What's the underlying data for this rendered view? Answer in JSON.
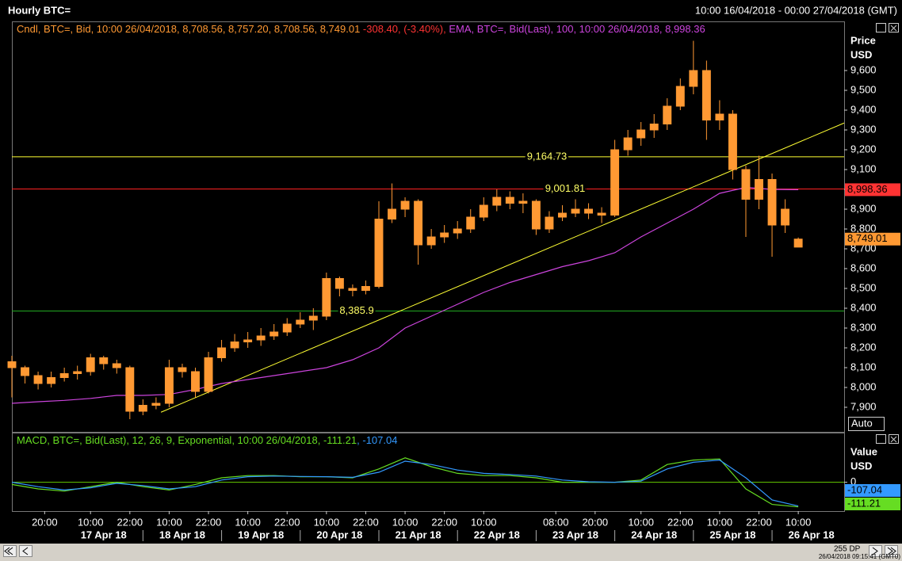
{
  "header": {
    "title": "Hourly BTC=",
    "range": "10:00 16/04/2018 - 00:00 27/04/2018 (GMT)"
  },
  "footer": {
    "points": "255 DP",
    "timestamp": "26/04/2018 09:15:41 (GMT0)"
  },
  "chart_data": [
    {
      "type": "candlestick",
      "legend": [
        {
          "text": "Cndl, BTC=, Bid, 10:00 26/04/2018, 8,708.56, 8,757.20, 8,708.56, 8,749.01",
          "color": "#ff9933"
        },
        {
          "text": " -308.40, (-3.40%), ",
          "color": "#ff3333"
        },
        {
          "text": "EMA, BTC=, Bid(Last),  100, 10:00 26/04/2018, 8,998.36",
          "color": "#cc44dd"
        }
      ],
      "y_title": "Price",
      "y_unit": "USD",
      "button": "Auto",
      "color": "#ff9933",
      "x": [
        0,
        4,
        8,
        12,
        16,
        20,
        24,
        28,
        32,
        36,
        40,
        44,
        48,
        52,
        56,
        60,
        64,
        68,
        72,
        76,
        80,
        84,
        88,
        92,
        96,
        100,
        104,
        108,
        112,
        116,
        120,
        124,
        128,
        132,
        136,
        140,
        144,
        148,
        152,
        156,
        160,
        164,
        168,
        172,
        176,
        180,
        184,
        188,
        192,
        196,
        200,
        204,
        208,
        212,
        216,
        220,
        224,
        228,
        232,
        236,
        240
      ],
      "open": [
        8130,
        8100,
        8060,
        8020,
        8050,
        8070,
        8080,
        8150,
        8120,
        8100,
        7880,
        7910,
        7920,
        8100,
        8080,
        7980,
        8150,
        8200,
        8230,
        8240,
        8260,
        8280,
        8320,
        8340,
        8360,
        8550,
        8500,
        8490,
        8510,
        8850,
        8900,
        8940,
        8720,
        8760,
        8780,
        8800,
        8860,
        8920,
        8960,
        8930,
        8940,
        8800,
        8860,
        8880,
        8900,
        8880,
        8870,
        9200,
        9260,
        9300,
        9330,
        9420,
        9520,
        9600,
        9350,
        9380,
        9100,
        8950,
        9050,
        8820,
        8708.56
      ],
      "high": [
        8160,
        8110,
        8080,
        8080,
        8100,
        8110,
        8170,
        8160,
        8140,
        8110,
        7940,
        7950,
        8140,
        8120,
        8100,
        8180,
        8240,
        8270,
        8280,
        8300,
        8320,
        8350,
        8380,
        8400,
        8580,
        8560,
        8520,
        8540,
        8940,
        9030,
        8960,
        8950,
        8800,
        8820,
        8840,
        8900,
        8960,
        9000,
        8990,
        8980,
        8950,
        8890,
        8920,
        8950,
        8930,
        8910,
        9250,
        9300,
        9340,
        9380,
        9460,
        9560,
        9750,
        9650,
        9450,
        9400,
        9120,
        9170,
        9080,
        8950,
        8757.2
      ],
      "low": [
        7950,
        8020,
        7990,
        8000,
        8030,
        8040,
        8060,
        8090,
        8070,
        7840,
        7860,
        7890,
        7900,
        8050,
        7950,
        7970,
        8130,
        8180,
        8200,
        8210,
        8240,
        8260,
        8300,
        8290,
        8340,
        8460,
        8460,
        8470,
        8500,
        8830,
        8860,
        8620,
        8700,
        8730,
        8750,
        8780,
        8840,
        8890,
        8900,
        8880,
        8770,
        8780,
        8840,
        8860,
        8850,
        8830,
        8860,
        9170,
        9220,
        9260,
        9300,
        9400,
        9480,
        9250,
        9300,
        9050,
        8760,
        8900,
        8660,
        8780,
        8708.56
      ],
      "close": [
        8100,
        8060,
        8020,
        8050,
        8070,
        8080,
        8150,
        8120,
        8100,
        7880,
        7910,
        7920,
        8100,
        8080,
        7980,
        8150,
        8200,
        8230,
        8240,
        8260,
        8280,
        8320,
        8340,
        8360,
        8550,
        8500,
        8490,
        8510,
        8850,
        8900,
        8940,
        8720,
        8760,
        8780,
        8800,
        8860,
        8920,
        8960,
        8930,
        8940,
        8800,
        8860,
        8880,
        8900,
        8880,
        8870,
        9200,
        9260,
        9300,
        9330,
        9420,
        9520,
        9600,
        9350,
        9380,
        9100,
        8950,
        9050,
        8820,
        8900,
        8749.01
      ],
      "series": [
        {
          "color": "#cc44dd",
          "x": [
            0,
            8,
            16,
            24,
            32,
            40,
            48,
            56,
            64,
            72,
            80,
            88,
            96,
            104,
            112,
            120,
            128,
            136,
            144,
            152,
            160,
            168,
            176,
            184,
            192,
            200,
            208,
            216,
            224,
            232,
            240
          ],
          "values": [
            7920,
            7928,
            7935,
            7945,
            7960,
            7960,
            7965,
            7990,
            8020,
            8040,
            8060,
            8080,
            8100,
            8140,
            8200,
            8300,
            8360,
            8420,
            8480,
            8530,
            8570,
            8610,
            8640,
            8680,
            8760,
            8830,
            8900,
            8980,
            9010,
            9000,
            8998.36
          ]
        }
      ],
      "hlines": [
        {
          "value": 9164.73,
          "label": "9,164.73",
          "color": "#ffff33"
        },
        {
          "value": 9001.81,
          "label": "9,001.81",
          "color": "#ff2222"
        },
        {
          "value": 8385.9,
          "label": "8,385.9",
          "color": "#22aa22"
        }
      ],
      "trendline": {
        "x": [
          45.5,
          254
        ],
        "y": [
          7875,
          9335
        ],
        "color": "#ffff33"
      },
      "price_labels": [
        {
          "value": 8998.36,
          "label": "8,998.36",
          "color": "#ff3333"
        },
        {
          "value": 8749.01,
          "label": "8,749.01",
          "color": "#ff9933"
        }
      ],
      "xlim": [
        0,
        254
      ],
      "ylim": [
        7776,
        9844
      ],
      "yticks": [
        {
          "value": 7900,
          "label": "7,900"
        },
        {
          "value": 8000,
          "label": "8,000"
        },
        {
          "value": 8100,
          "label": "8,100"
        },
        {
          "value": 8200,
          "label": "8,200"
        },
        {
          "value": 8300,
          "label": "8,300"
        },
        {
          "value": 8400,
          "label": "8,400"
        },
        {
          "value": 8500,
          "label": "8,500"
        },
        {
          "value": 8600,
          "label": "8,600"
        },
        {
          "value": 8700,
          "label": "8,700"
        },
        {
          "value": 8800,
          "label": "8,800"
        },
        {
          "value": 8900,
          "label": "8,900"
        },
        {
          "value": 9000,
          "label": "9,000"
        },
        {
          "value": 9100,
          "label": "9,100"
        },
        {
          "value": 9200,
          "label": "9,200"
        },
        {
          "value": 9300,
          "label": "9,300"
        },
        {
          "value": 9400,
          "label": "9,400"
        },
        {
          "value": 9500,
          "label": "9,500"
        },
        {
          "value": 9600,
          "label": "9,600"
        }
      ],
      "grid": false
    },
    {
      "type": "line",
      "legend": [
        {
          "text": "MACD, BTC=, Bid(Last),  12, 26, 9, Exponential, 10:00 26/04/2018, -111.21",
          "color": "#66dd22"
        },
        {
          "text": ", -107.04",
          "color": "#3399ff"
        }
      ],
      "y_title": "Value",
      "y_unit": "USD",
      "x": [
        0,
        8,
        16,
        24,
        32,
        40,
        48,
        56,
        64,
        72,
        80,
        88,
        96,
        104,
        112,
        120,
        128,
        136,
        144,
        152,
        160,
        168,
        176,
        184,
        192,
        200,
        208,
        216,
        224,
        232,
        240
      ],
      "series": [
        {
          "color": "#66dd22",
          "values": [
            -10,
            -30,
            -40,
            -20,
            0,
            -20,
            -35,
            -10,
            20,
            30,
            30,
            25,
            25,
            20,
            60,
            110,
            70,
            40,
            30,
            30,
            20,
            0,
            0,
            0,
            10,
            80,
            100,
            105,
            -30,
            -100,
            -111.21
          ]
        },
        {
          "color": "#3399ff",
          "values": [
            0,
            -20,
            -35,
            -25,
            -5,
            -15,
            -30,
            -20,
            10,
            25,
            28,
            26,
            25,
            22,
            45,
            95,
            80,
            55,
            40,
            35,
            28,
            10,
            2,
            0,
            5,
            60,
            90,
            100,
            20,
            -80,
            -107.04
          ]
        }
      ],
      "price_labels": [
        {
          "value": -107.04,
          "label": "-107.04",
          "color": "#3399ff"
        },
        {
          "value": -111.21,
          "label": "-111.21",
          "color": "#66dd22"
        }
      ],
      "xlim": [
        0,
        254
      ],
      "ylim": [
        -130,
        220
      ],
      "yticks": [
        0
      ],
      "zero_line_color": "#66cc00",
      "xticks": [
        {
          "value": 10,
          "label": "20:00"
        },
        {
          "value": 24,
          "label": "10:00"
        },
        {
          "value": 36,
          "label": "22:00"
        },
        {
          "value": 48,
          "label": "10:00"
        },
        {
          "value": 60,
          "label": "22:00"
        },
        {
          "value": 72,
          "label": "10:00"
        },
        {
          "value": 84,
          "label": "22:00"
        },
        {
          "value": 96,
          "label": "10:00"
        },
        {
          "value": 108,
          "label": "22:00"
        },
        {
          "value": 120,
          "label": "10:00"
        },
        {
          "value": 132,
          "label": "22:00"
        },
        {
          "value": 144,
          "label": "10:00"
        },
        {
          "value": 166,
          "label": "08:00"
        },
        {
          "value": 178,
          "label": "20:00"
        },
        {
          "value": 192,
          "label": "10:00"
        },
        {
          "value": 204,
          "label": "22:00"
        },
        {
          "value": 216,
          "label": "10:00"
        },
        {
          "value": 228,
          "label": "22:00"
        },
        {
          "value": 240,
          "label": "10:00"
        }
      ],
      "day_ticks": [
        {
          "value": 28,
          "label": "17 Apr 18"
        },
        {
          "value": 52,
          "label": "18 Apr 18"
        },
        {
          "value": 76,
          "label": "19 Apr 18"
        },
        {
          "value": 100,
          "label": "20 Apr 18"
        },
        {
          "value": 124,
          "label": "21 Apr 18"
        },
        {
          "value": 148,
          "label": "22 Apr 18"
        },
        {
          "value": 172,
          "label": "23 Apr 18"
        },
        {
          "value": 196,
          "label": "24 Apr 18"
        },
        {
          "value": 220,
          "label": "25 Apr 18"
        },
        {
          "value": 244,
          "label": "26 Apr 18"
        }
      ]
    }
  ]
}
